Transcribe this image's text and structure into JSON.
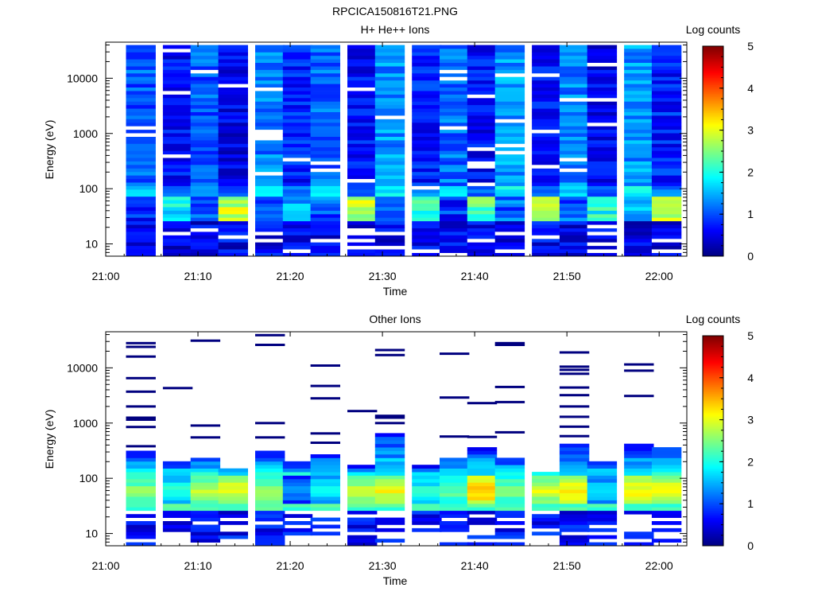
{
  "page_title": "RPCICA150816T21.PNG",
  "colors": {
    "colormap": [
      "#00007f",
      "#0000ff",
      "#007fff",
      "#00ffff",
      "#7fff7f",
      "#ffff00",
      "#ff7f00",
      "#ff0000",
      "#7f0000"
    ]
  },
  "chart_data": [
    {
      "type": "heatmap",
      "title": "H+ He++ Ions",
      "xlabel": "Time",
      "ylabel": "Energy (eV)",
      "x_ticks": [
        "21:00",
        "21:10",
        "21:20",
        "21:30",
        "21:40",
        "21:50",
        "22:00"
      ],
      "x_range": [
        "21:00",
        "22:03"
      ],
      "y_scale": "log",
      "y_range": [
        6,
        45000
      ],
      "y_ticks": [
        10,
        100,
        1000,
        10000
      ],
      "colorbar": {
        "label": "Log counts",
        "range": [
          0,
          5
        ],
        "ticks": [
          0,
          1,
          2,
          3,
          4,
          5
        ]
      },
      "time_bins": [
        "21:02",
        "21:06",
        "21:09",
        "21:12",
        "21:16",
        "21:19",
        "21:22",
        "21:26",
        "21:29",
        "21:33",
        "21:36",
        "21:39",
        "21:42",
        "21:46",
        "21:49",
        "21:52",
        "21:56",
        "21:59"
      ],
      "low_energy_band": {
        "energy_range": [
          25,
          75
        ],
        "peak_values": [
          1.2,
          2.3,
          1.6,
          3.2,
          1.4,
          2.0,
          1.5,
          3.2,
          1.8,
          2.5,
          1.3,
          2.7,
          1.6,
          3.3,
          1.5,
          2.4,
          1.8,
          3.2
        ]
      },
      "background_level": [
        0.9,
        0.5,
        0.9,
        0.4,
        1.1,
        0.6,
        1.0,
        0.5,
        1.2,
        0.6,
        1.0,
        0.5,
        1.2,
        0.5,
        1.1,
        0.4,
        1.2,
        0.6
      ]
    },
    {
      "type": "heatmap",
      "title": "Other Ions",
      "xlabel": "Time",
      "ylabel": "Energy (eV)",
      "x_ticks": [
        "21:00",
        "21:10",
        "21:20",
        "21:30",
        "21:40",
        "21:50",
        "22:00"
      ],
      "x_range": [
        "21:00",
        "22:03"
      ],
      "y_scale": "log",
      "y_range": [
        6,
        45000
      ],
      "y_ticks": [
        10,
        100,
        1000,
        10000
      ],
      "colorbar": {
        "label": "Log counts",
        "range": [
          0,
          5
        ],
        "ticks": [
          0,
          1,
          2,
          3,
          4,
          5
        ]
      },
      "time_bins": [
        "21:02",
        "21:06",
        "21:09",
        "21:12",
        "21:16",
        "21:19",
        "21:22",
        "21:26",
        "21:29",
        "21:33",
        "21:36",
        "21:39",
        "21:42",
        "21:46",
        "21:49",
        "21:52",
        "21:56",
        "21:59"
      ],
      "column_top_energy": [
        300,
        190,
        250,
        160,
        320,
        190,
        290,
        165,
        650,
        165,
        250,
        380,
        250,
        135,
        420,
        190,
        420,
        380
      ],
      "band_peak_values": [
        2.8,
        2.3,
        3.0,
        3.3,
        2.9,
        1.6,
        2.2,
        3.1,
        3.3,
        2.3,
        2.6,
        3.7,
        2.8,
        3.2,
        3.5,
        2.0,
        3.4,
        3.4
      ],
      "sparse_lines_energy": [
        [
          28000,
          24000,
          16000,
          6500,
          3700,
          2000,
          1250,
          1150,
          850,
          380
        ],
        [
          4300
        ],
        [
          31000,
          900,
          550
        ],
        [],
        [
          39000,
          26000,
          1000,
          550
        ],
        [],
        [
          11000,
          4700,
          2800,
          650,
          440
        ],
        [
          1650
        ],
        [
          21000,
          17000,
          1350,
          1250,
          1000
        ],
        [],
        [
          18000,
          2900,
          570
        ],
        [
          2300,
          560
        ],
        [
          28000,
          26000,
          4500,
          2400,
          680
        ],
        [],
        [
          19000,
          10500,
          9200,
          7800,
          4400,
          3200,
          2000,
          1300,
          860,
          580
        ],
        [],
        [
          11500,
          8900,
          3100
        ],
        []
      ]
    }
  ]
}
